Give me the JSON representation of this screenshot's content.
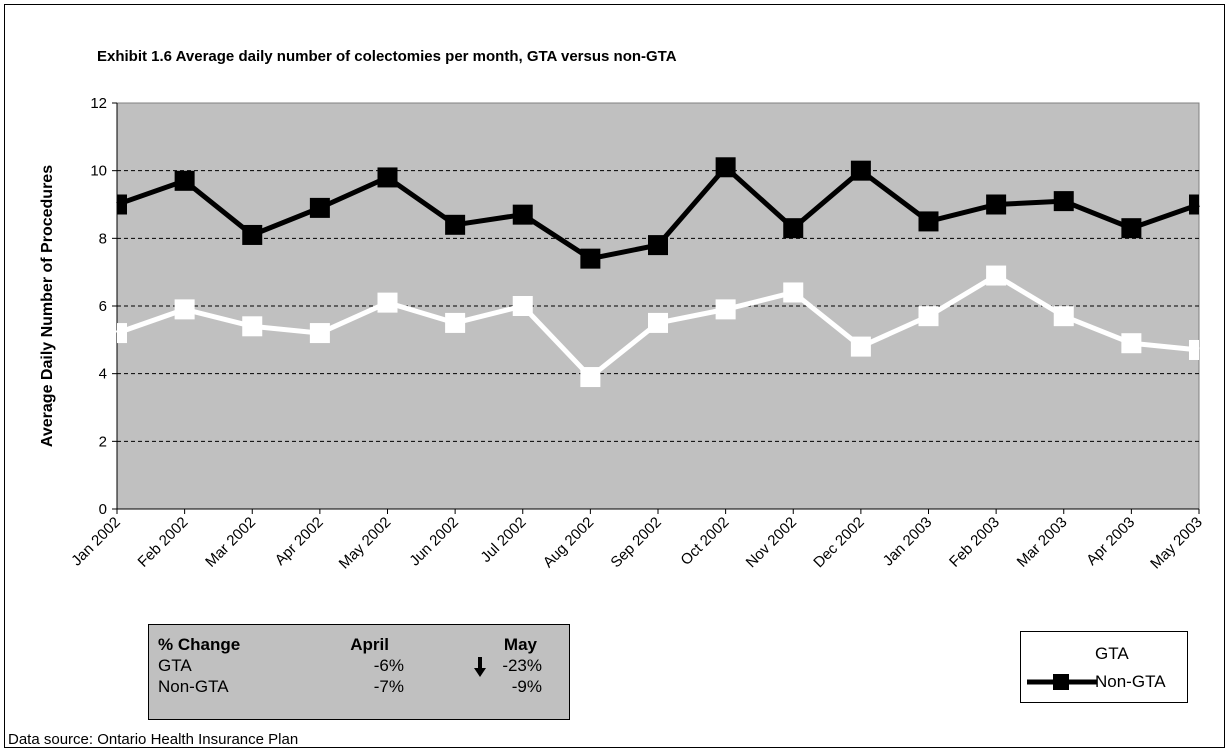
{
  "chart_data": {
    "type": "line",
    "title": "Exhibit 1.6 Average daily number of colectomies per month, GTA versus non-GTA",
    "ylabel": "Average Daily Number of Procedures",
    "xlabel": "",
    "categories": [
      "Jan 2002",
      "Feb 2002",
      "Mar 2002",
      "Apr 2002",
      "May 2002",
      "Jun 2002",
      "Jul 2002",
      "Aug 2002",
      "Sep 2002",
      "Oct 2002",
      "Nov 2002",
      "Dec 2002",
      "Jan 2003",
      "Feb 2003",
      "Mar 2003",
      "Apr 2003",
      "May 2003"
    ],
    "series": [
      {
        "name": "GTA",
        "color": "#ffffff",
        "values": [
          5.2,
          5.9,
          5.4,
          5.2,
          6.1,
          5.5,
          6.0,
          3.9,
          5.5,
          5.9,
          6.4,
          4.8,
          5.7,
          6.9,
          5.7,
          4.9,
          4.7
        ]
      },
      {
        "name": "Non-GTA",
        "color": "#000000",
        "values": [
          9.0,
          9.7,
          8.1,
          8.9,
          9.8,
          8.4,
          8.7,
          7.4,
          7.8,
          10.1,
          8.3,
          10.0,
          8.5,
          9.0,
          9.1,
          8.3,
          9.0
        ]
      }
    ],
    "ylim": [
      0,
      12
    ],
    "yticks": [
      "0",
      "2",
      "4",
      "6",
      "8",
      "10",
      "12"
    ],
    "grid": "horizontal dashed",
    "legend_position": "bottom-right",
    "plot_background": "#c0c0c0"
  },
  "change_table": {
    "header": {
      "label": "% Change",
      "april": "April",
      "may": "May"
    },
    "rows": [
      {
        "label": "GTA",
        "april": "-6%",
        "may": "-23%"
      },
      {
        "label": "Non-GTA",
        "april": "-7%",
        "may": "-9%"
      }
    ],
    "arrow_icon": "down-arrow-icon"
  },
  "source": "Data source: Ontario Health Insurance Plan"
}
